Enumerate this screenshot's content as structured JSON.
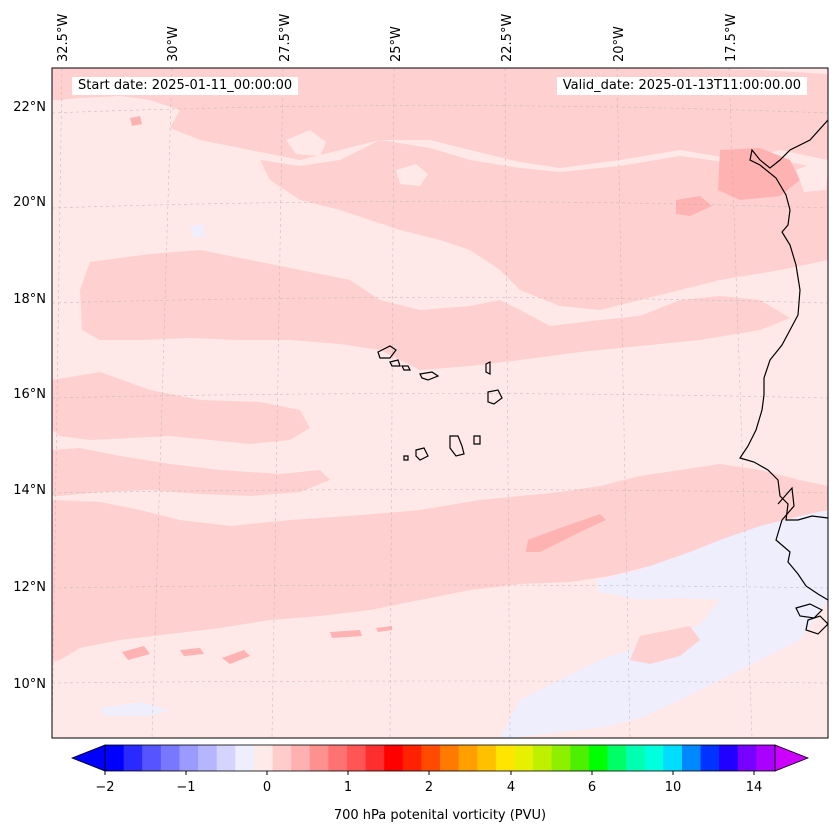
{
  "header": {
    "start_date": "Start date: 2025-01-11_00:00:00",
    "valid_date": "Valid_date: 2025-01-13T11:00:00.00"
  },
  "map": {
    "lon_labels": [
      "32.5°W",
      "30°W",
      "27.5°W",
      "25°W",
      "22.5°W",
      "20°W",
      "17.5°W"
    ],
    "lat_labels": [
      "22°N",
      "20°N",
      "18°N",
      "16°N",
      "14°N",
      "12°N",
      "10°N"
    ],
    "background_color": "#ffe6e6",
    "features": [
      "coastline-west-africa",
      "cape-verde-islands"
    ]
  },
  "colorbar": {
    "label": "700 hPa potenital vorticity (PVU)",
    "tick_labels": [
      "−2",
      "−1",
      "0",
      "1",
      "2",
      "4",
      "6",
      "10",
      "14"
    ],
    "colors": [
      "#0000ff",
      "#2a2aff",
      "#5555ff",
      "#7878ff",
      "#9a9aff",
      "#b6b6ff",
      "#d4d4ff",
      "#eeeeff",
      "#ffeaea",
      "#ffcccc",
      "#ffb0b0",
      "#ff9090",
      "#ff7272",
      "#ff5555",
      "#ff2e2e",
      "#ff0000",
      "#ff2200",
      "#ff4a00",
      "#ff7a00",
      "#ff9f00",
      "#ffc000",
      "#ffe600",
      "#e6f000",
      "#bff000",
      "#8cf000",
      "#4cf000",
      "#00ff00",
      "#00ff66",
      "#00ffb0",
      "#00ffdd",
      "#00ddff",
      "#0088ff",
      "#0033ff",
      "#2200ff",
      "#7700ff",
      "#aa00ff"
    ],
    "arrow_low": "#0000ff",
    "arrow_high": "#cc00ff"
  }
}
